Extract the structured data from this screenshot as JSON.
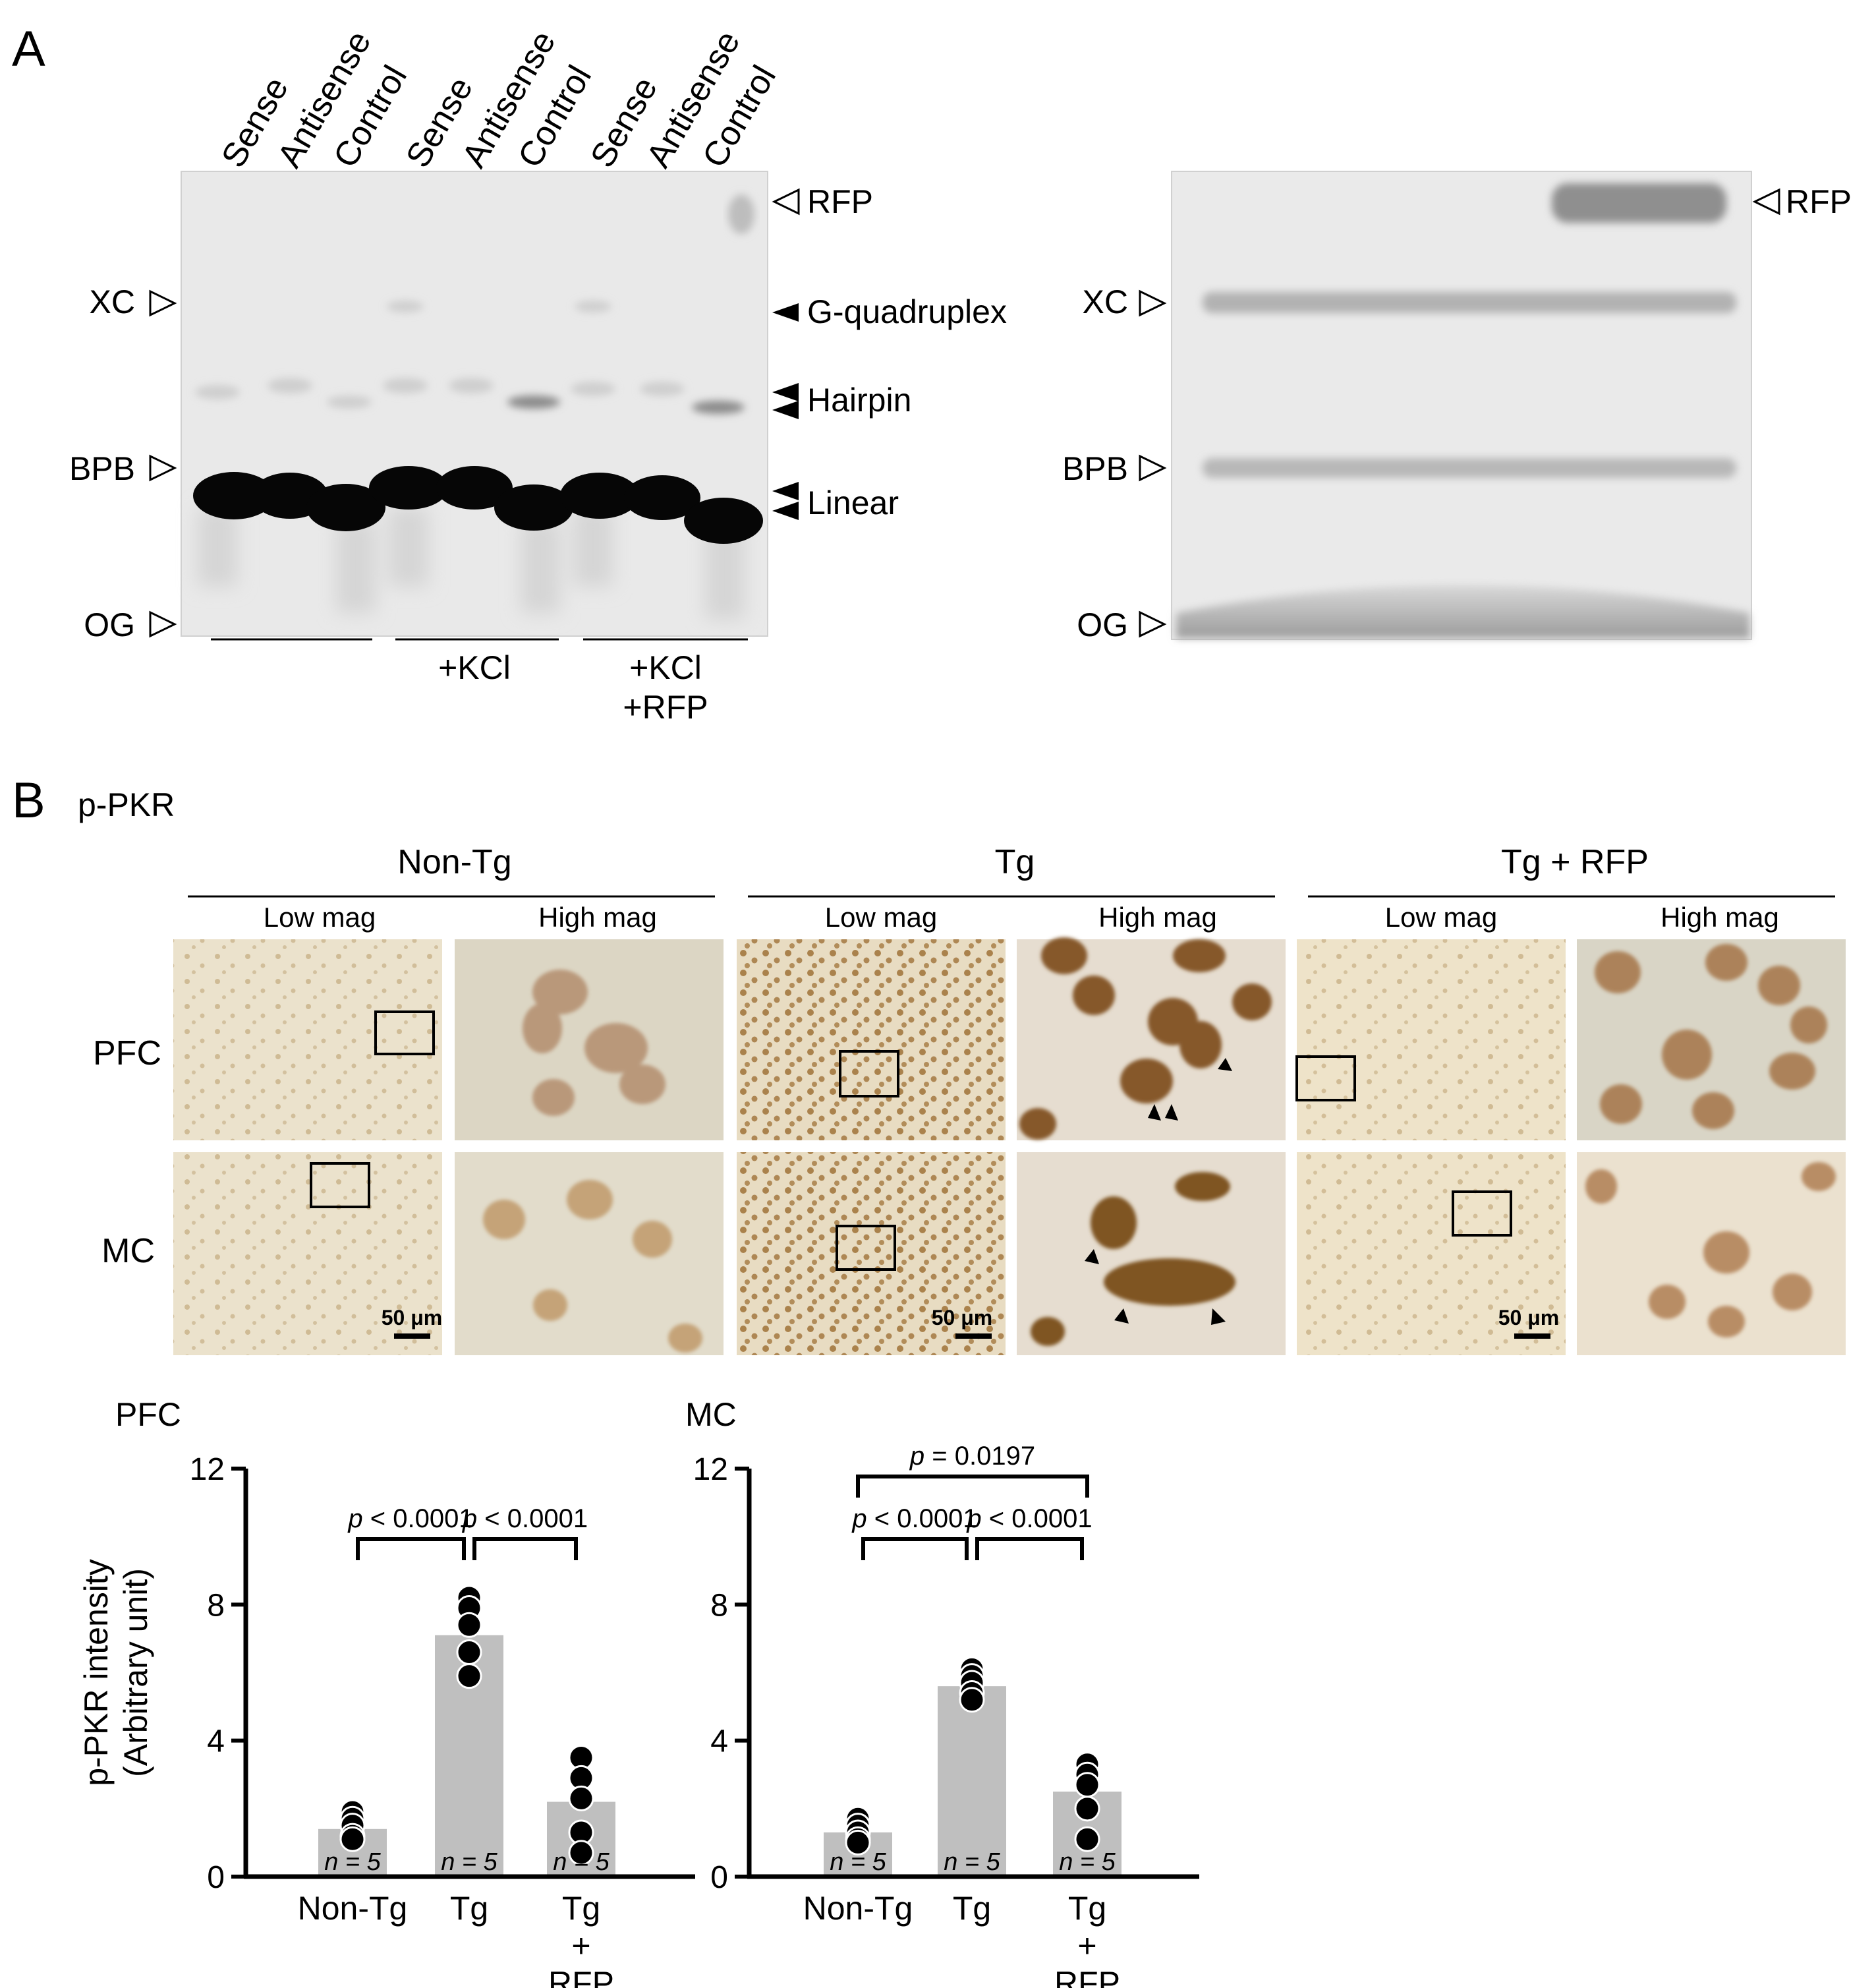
{
  "panelA": {
    "label": "A",
    "lanes": [
      "Sense",
      "Antisense",
      "Control",
      "Sense",
      "Antisense",
      "Control",
      "Sense",
      "Antisense",
      "Control"
    ],
    "markers": {
      "xc": "XC",
      "bpb": "BPB",
      "og": "OG",
      "rfp": "RFP"
    },
    "bands": {
      "g_quadruplex": "G-quadruplex",
      "hairpin": "Hairpin",
      "linear": "Linear"
    },
    "groups": {
      "kcl": "+KCl",
      "kcl_rfp_1": "+KCl",
      "kcl_rfp_2": "+RFP"
    }
  },
  "panelB": {
    "label": "B",
    "stain": "p-PKR",
    "groups": [
      "Non-Tg",
      "Tg",
      "Tg + RFP"
    ],
    "mag": {
      "low": "Low mag",
      "high": "High mag"
    },
    "rows": {
      "pfc": "PFC",
      "mc": "MC"
    },
    "scale_bar": "50 μm"
  },
  "chart_data": [
    {
      "type": "bar",
      "title": "PFC",
      "ylabel": "p-PKR intensity",
      "ylabel2": "(Arbitrary unit)",
      "ylim": [
        0,
        12
      ],
      "yticks": [
        "0",
        "4",
        "8",
        "12"
      ],
      "categories": [
        "Non-Tg",
        "Tg",
        "Tg + RFP"
      ],
      "category_lines": [
        [
          "Non-Tg"
        ],
        [
          "Tg"
        ],
        [
          "Tg",
          "+",
          "RFP"
        ]
      ],
      "values": [
        1.4,
        7.1,
        2.2
      ],
      "points": [
        [
          1.9,
          1.7,
          1.5,
          1.2,
          1.1
        ],
        [
          8.2,
          7.9,
          7.4,
          6.6,
          5.9
        ],
        [
          3.5,
          2.9,
          2.3,
          1.3,
          0.7
        ]
      ],
      "n_labels": [
        "n = 5",
        "n = 5",
        "n = 5"
      ],
      "comparisons": [
        {
          "from": 0,
          "to": 1,
          "level": 0,
          "label": "p < 0.0001"
        },
        {
          "from": 1,
          "to": 2,
          "level": 0,
          "label": "p < 0.0001"
        }
      ]
    },
    {
      "type": "bar",
      "title": "MC",
      "ylim": [
        0,
        12
      ],
      "yticks": [
        "0",
        "4",
        "8",
        "12"
      ],
      "categories": [
        "Non-Tg",
        "Tg",
        "Tg + RFP"
      ],
      "category_lines": [
        [
          "Non-Tg"
        ],
        [
          "Tg"
        ],
        [
          "Tg",
          "+",
          "RFP"
        ]
      ],
      "values": [
        1.3,
        5.6,
        2.5
      ],
      "points": [
        [
          1.7,
          1.5,
          1.3,
          1.1,
          1.0
        ],
        [
          6.1,
          5.9,
          5.7,
          5.4,
          5.2
        ],
        [
          3.3,
          3.0,
          2.7,
          2.0,
          1.1
        ]
      ],
      "n_labels": [
        "n = 5",
        "n = 5",
        "n = 5"
      ],
      "comparisons": [
        {
          "from": 0,
          "to": 1,
          "level": 0,
          "label": "p < 0.0001"
        },
        {
          "from": 1,
          "to": 2,
          "level": 0,
          "label": "p < 0.0001"
        },
        {
          "from": 0,
          "to": 2,
          "level": 1,
          "label": "p = 0.0197"
        }
      ]
    }
  ]
}
